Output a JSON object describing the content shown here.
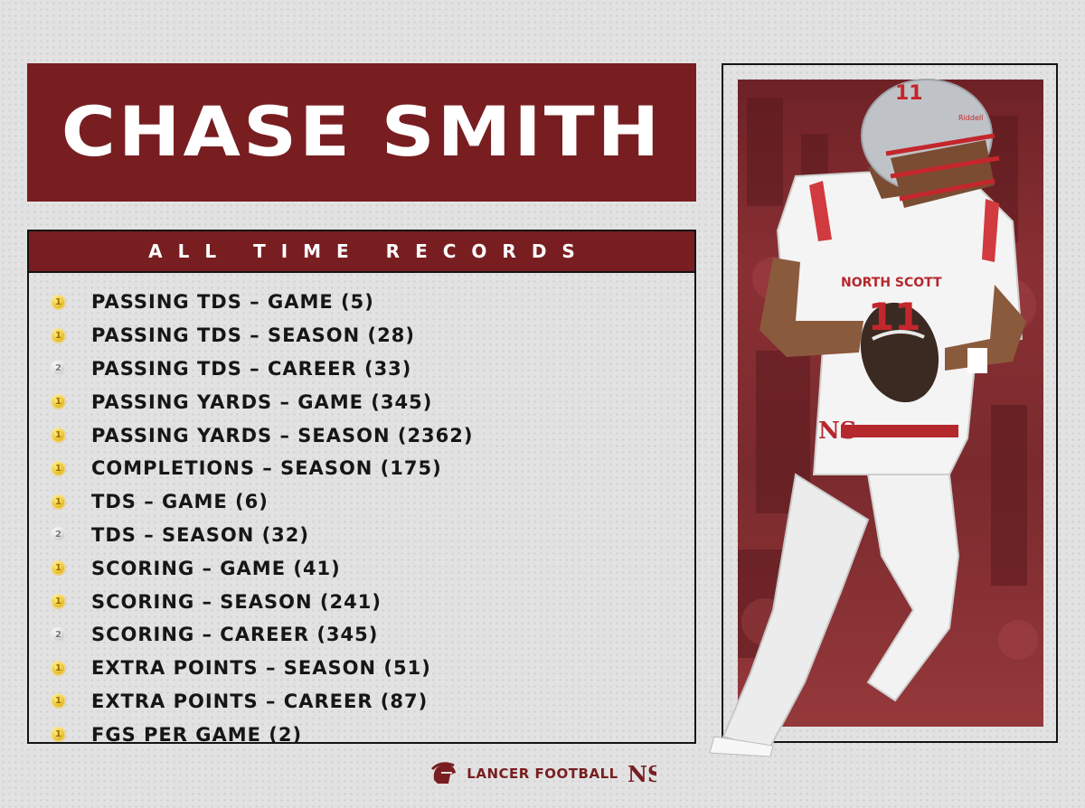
{
  "player": {
    "name": "CHASE SMITH"
  },
  "records": {
    "title": "ALL TIME RECORDS",
    "items": [
      {
        "label": "PASSING TDS – GAME (5)",
        "medal": "gold",
        "rank": "1"
      },
      {
        "label": "PASSING TDS – SEASON (28)",
        "medal": "gold",
        "rank": "1"
      },
      {
        "label": "PASSING TDS – CAREER (33)",
        "medal": "silver",
        "rank": "2"
      },
      {
        "label": "PASSING YARDS – GAME (345)",
        "medal": "gold",
        "rank": "1"
      },
      {
        "label": "PASSING YARDS – SEASON (2362)",
        "medal": "gold",
        "rank": "1"
      },
      {
        "label": "COMPLETIONS – SEASON (175)",
        "medal": "gold",
        "rank": "1"
      },
      {
        "label": "TDS – GAME (6)",
        "medal": "gold",
        "rank": "1"
      },
      {
        "label": "TDS – SEASON (32)",
        "medal": "silver",
        "rank": "2"
      },
      {
        "label": "SCORING – GAME (41)",
        "medal": "gold",
        "rank": "1"
      },
      {
        "label": "SCORING – SEASON (241)",
        "medal": "gold",
        "rank": "1"
      },
      {
        "label": "SCORING – CAREER (345)",
        "medal": "silver",
        "rank": "2"
      },
      {
        "label": "EXTRA POINTS – SEASON (51)",
        "medal": "gold",
        "rank": "1"
      },
      {
        "label": "EXTRA POINTS – CAREER (87)",
        "medal": "gold",
        "rank": "1"
      },
      {
        "label": "FGS PER GAME (2)",
        "medal": "gold",
        "rank": "1"
      }
    ]
  },
  "jersey": {
    "school_text": "NORTH SCOTT",
    "number": "11",
    "helmet_brand": "Riddell"
  },
  "footer": {
    "text": "LANCER FOOTBALL",
    "monogram": "NS"
  },
  "colors": {
    "maroon": "#781e21",
    "background": "#e2e2e2",
    "frame": "#141414",
    "gold_medal": "#e2b21b",
    "silver_medal": "#c9c9c9"
  },
  "icons": {
    "gold_medal": "gold-medal-icon",
    "silver_medal": "silver-medal-icon",
    "footer_logo": "lancer-helmet-icon",
    "footer_monogram": "ns-monogram-icon"
  }
}
